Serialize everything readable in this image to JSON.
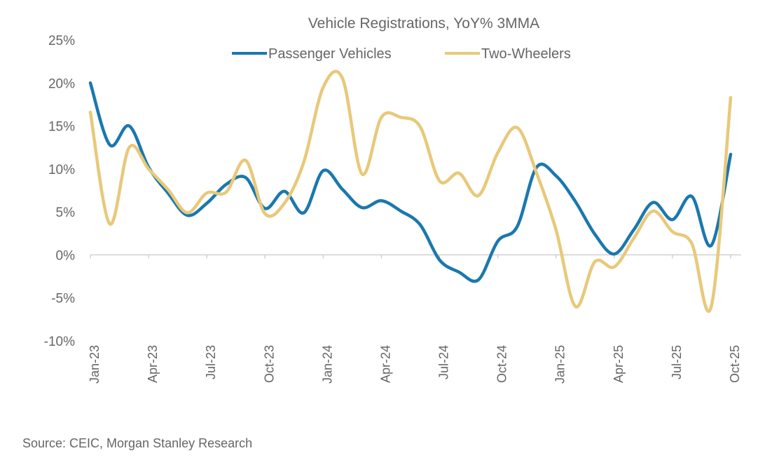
{
  "chart_data": {
    "type": "line",
    "title": "Vehicle Registrations, YoY% 3MMA",
    "xlabel": "",
    "ylabel": "",
    "ylim": [
      -10,
      25
    ],
    "yticks": [
      "-10%",
      "-5%",
      "0%",
      "5%",
      "10%",
      "15%",
      "20%",
      "25%"
    ],
    "ytick_values": [
      -10,
      -5,
      0,
      5,
      10,
      15,
      20,
      25
    ],
    "x": [
      "Jan-23",
      "Feb-23",
      "Mar-23",
      "Apr-23",
      "May-23",
      "Jun-23",
      "Jul-23",
      "Aug-23",
      "Sep-23",
      "Oct-23",
      "Nov-23",
      "Dec-23",
      "Jan-24",
      "Feb-24",
      "Mar-24",
      "Apr-24",
      "May-24",
      "Jun-24",
      "Jul-24",
      "Aug-24",
      "Sep-24",
      "Oct-24",
      "Nov-24",
      "Dec-24",
      "Jan-25",
      "Feb-25",
      "Mar-25",
      "Apr-25",
      "May-25",
      "Jun-25",
      "Jul-25",
      "Aug-25",
      "Sep-25",
      "Oct-25"
    ],
    "xtick_labels": [
      "Jan-23",
      "Apr-23",
      "Jul-23",
      "Oct-23",
      "Jan-24",
      "Apr-24",
      "Jul-24",
      "Oct-24",
      "Jan-25",
      "Apr-25",
      "Jul-25",
      "Oct-25"
    ],
    "grid": false,
    "legend_position": "top",
    "series": [
      {
        "name": "Passenger Vehicles",
        "color": "#1a78ae",
        "values": [
          20.0,
          12.8,
          15.0,
          10.2,
          7.2,
          4.6,
          6.0,
          8.2,
          9.0,
          5.4,
          7.4,
          4.9,
          9.8,
          7.6,
          5.5,
          6.3,
          5.1,
          3.5,
          -0.6,
          -2.0,
          -2.9,
          1.6,
          3.3,
          10.2,
          9.2,
          6.2,
          2.4,
          0.1,
          2.9,
          6.1,
          4.1,
          6.8,
          1.1,
          11.7
        ]
      },
      {
        "name": "Two-Wheelers",
        "color": "#e8c97a",
        "values": [
          16.6,
          3.6,
          12.5,
          10.0,
          7.6,
          4.9,
          7.2,
          7.3,
          11.0,
          4.8,
          6.0,
          10.8,
          19.5,
          20.5,
          9.4,
          16.0,
          16.0,
          14.9,
          8.6,
          9.5,
          6.9,
          11.9,
          14.8,
          9.5,
          2.9,
          -6.0,
          -0.8,
          -1.4,
          1.9,
          5.1,
          2.7,
          1.3,
          -6.0,
          18.3
        ]
      }
    ]
  },
  "footer": {
    "source": "Source: CEIC, Morgan Stanley Research"
  }
}
